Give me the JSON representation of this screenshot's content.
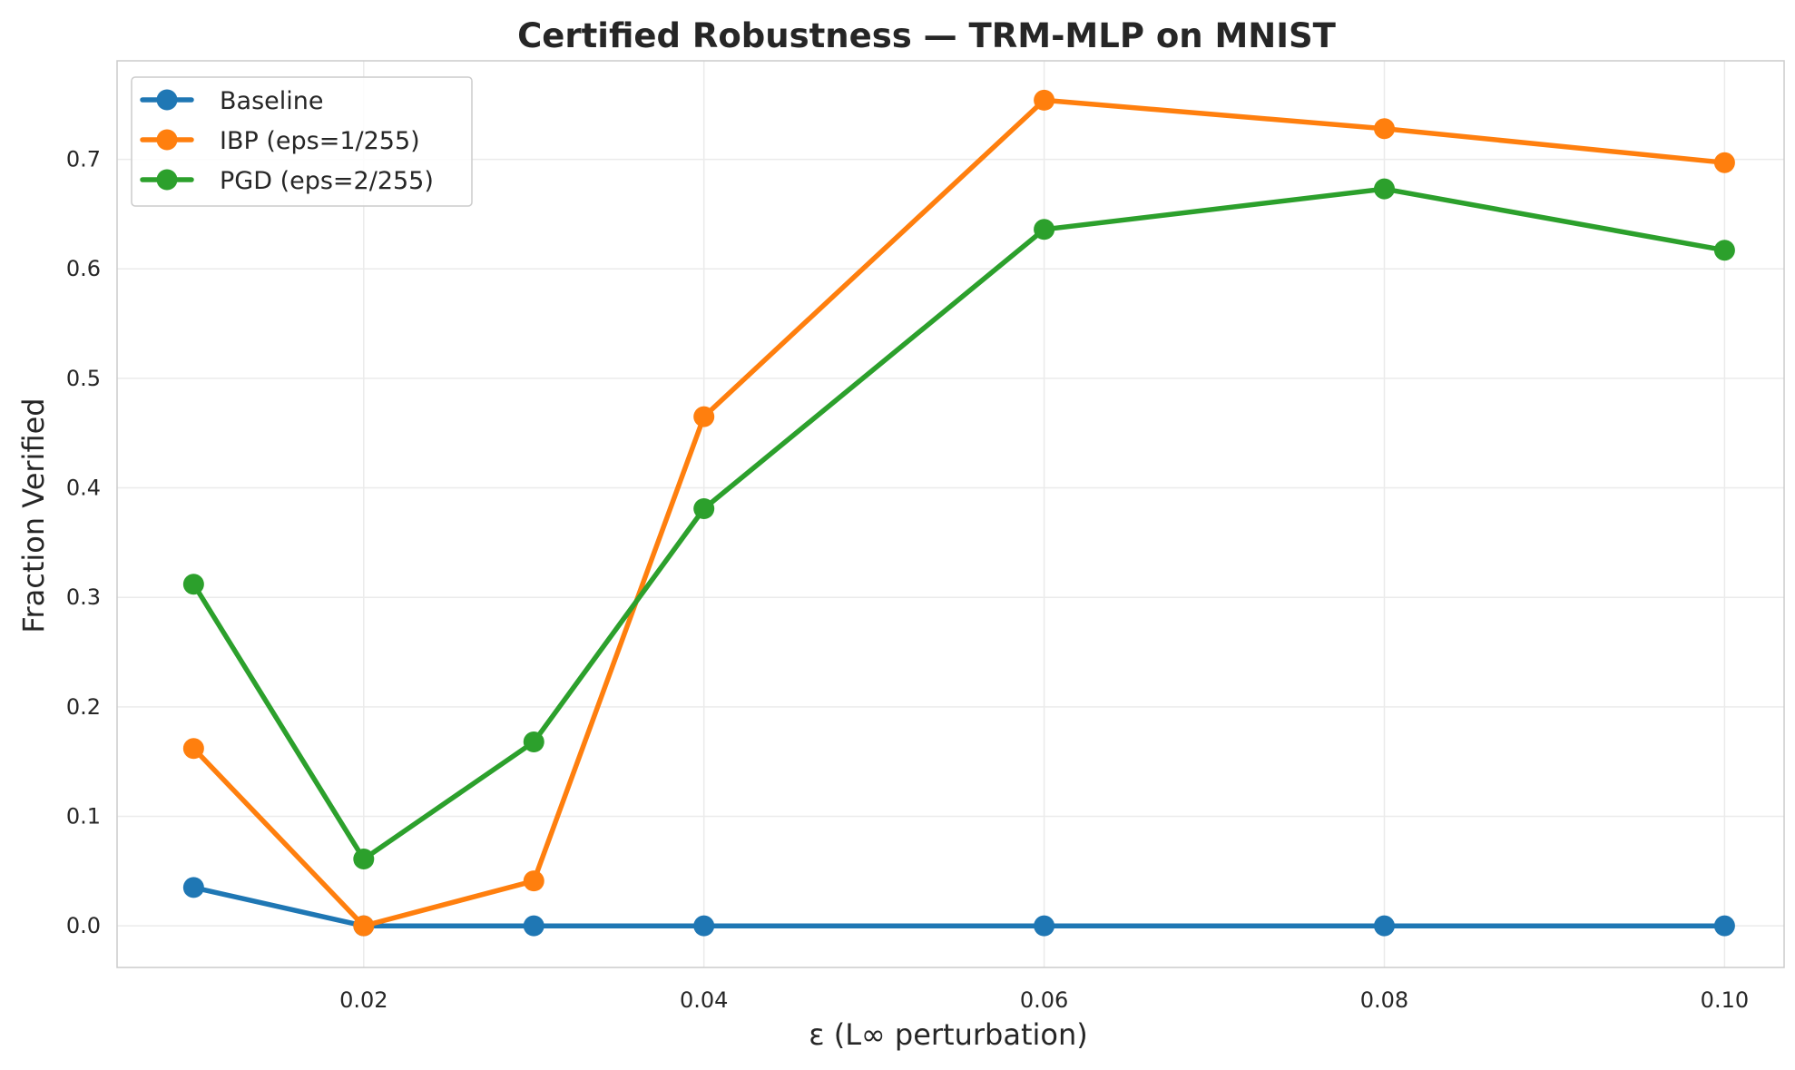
{
  "chart_data": {
    "type": "line",
    "title": "Certified Robustness — TRM-MLP on MNIST",
    "xlabel": "ε (L∞ perturbation)",
    "ylabel": "Fraction Verified",
    "x": [
      0.01,
      0.02,
      0.03,
      0.04,
      0.06,
      0.08,
      0.1
    ],
    "xlim": [
      0.0055,
      0.1035
    ],
    "ylim": [
      -0.038,
      0.79
    ],
    "xticks": [
      0.02,
      0.04,
      0.06,
      0.08,
      0.1
    ],
    "xtick_labels": [
      "0.02",
      "0.04",
      "0.06",
      "0.08",
      "0.10"
    ],
    "yticks": [
      0.0,
      0.1,
      0.2,
      0.3,
      0.4,
      0.5,
      0.6,
      0.7
    ],
    "ytick_labels": [
      "0.0",
      "0.1",
      "0.2",
      "0.3",
      "0.4",
      "0.5",
      "0.6",
      "0.7"
    ],
    "grid": true,
    "legend_position": "top-left",
    "series": [
      {
        "name": "Baseline",
        "color": "#1f77b4",
        "values": [
          0.035,
          0.0,
          0.0,
          0.0,
          0.0,
          0.0,
          0.0
        ]
      },
      {
        "name": "IBP (eps=1/255)",
        "color": "#ff7f0e",
        "values": [
          0.162,
          0.0,
          0.041,
          0.465,
          0.754,
          0.728,
          0.697
        ]
      },
      {
        "name": "PGD (eps=2/255)",
        "color": "#2ca02c",
        "values": [
          0.312,
          0.061,
          0.168,
          0.381,
          0.636,
          0.673,
          0.617
        ]
      }
    ]
  }
}
